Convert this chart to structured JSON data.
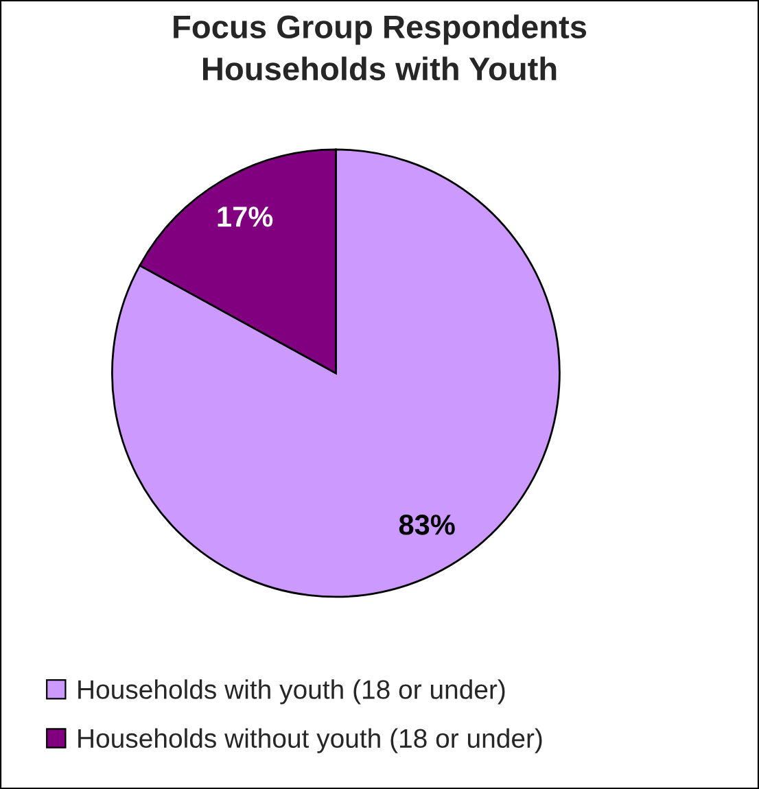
{
  "chart_data": {
    "type": "pie",
    "title": "Focus Group Respondents\nHouseholds with Youth",
    "categories": [
      "Households with youth (18 or under)",
      "Households without youth (18 or under)"
    ],
    "values": [
      83,
      17
    ],
    "colors": [
      "#cc99ff",
      "#800080"
    ],
    "value_labels": [
      "83%",
      "17%"
    ],
    "legend": "bottom"
  }
}
